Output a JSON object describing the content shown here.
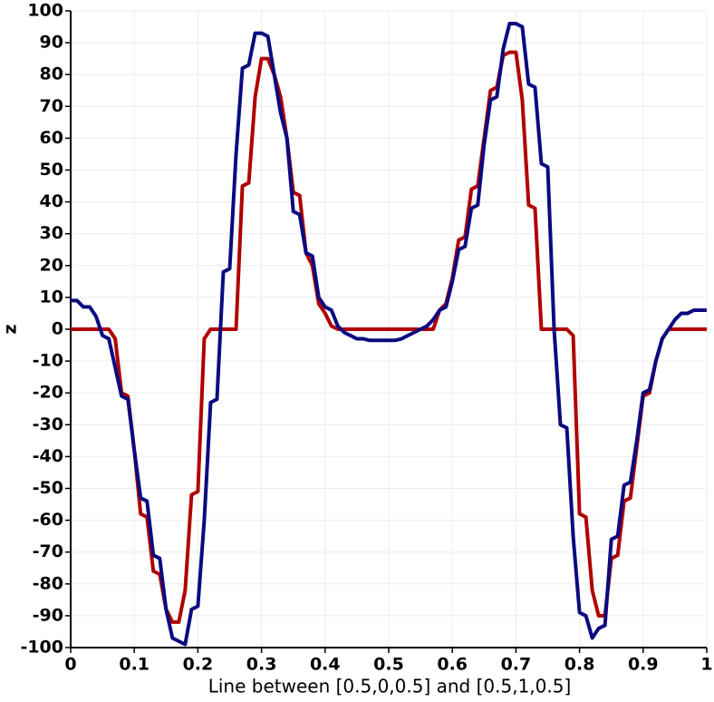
{
  "chart_data": {
    "type": "line",
    "x_label": "Line between [0.5,0,0.5]  and  [0.5,1,0.5]",
    "y_label": "z",
    "x": [
      0,
      0.01,
      0.02,
      0.03,
      0.04,
      0.05,
      0.06,
      0.07,
      0.08,
      0.09,
      0.1,
      0.11,
      0.12,
      0.13,
      0.14,
      0.15,
      0.16,
      0.17,
      0.18,
      0.19,
      0.2,
      0.21,
      0.22,
      0.23,
      0.24,
      0.25,
      0.26,
      0.27,
      0.28,
      0.29,
      0.3,
      0.31,
      0.32,
      0.33,
      0.34,
      0.35,
      0.36,
      0.37,
      0.38,
      0.39,
      0.4,
      0.41,
      0.42,
      0.43,
      0.44,
      0.45,
      0.46,
      0.47,
      0.48,
      0.49,
      0.5,
      0.51,
      0.52,
      0.53,
      0.54,
      0.55,
      0.56,
      0.57,
      0.58,
      0.59,
      0.6,
      0.61,
      0.62,
      0.63,
      0.64,
      0.65,
      0.66,
      0.67,
      0.68,
      0.69,
      0.7,
      0.71,
      0.72,
      0.73,
      0.74,
      0.75,
      0.76,
      0.77,
      0.78,
      0.79,
      0.8,
      0.81,
      0.82,
      0.83,
      0.84,
      0.85,
      0.86,
      0.87,
      0.88,
      0.89,
      0.9,
      0.91,
      0.92,
      0.93,
      0.94,
      0.95,
      0.96,
      0.97,
      0.98,
      0.99,
      1
    ],
    "series": [
      {
        "color": "#b00000",
        "values": [
          0,
          0,
          0,
          0,
          0,
          0,
          0,
          -3,
          -20,
          -21,
          -38,
          -58,
          -59,
          -76,
          -77,
          -88,
          -92,
          -92,
          -82,
          -52,
          -51,
          -3,
          0,
          0,
          0,
          0,
          0,
          45,
          46,
          73,
          85,
          85,
          80,
          73,
          60,
          43,
          42,
          24,
          20,
          8,
          5,
          1,
          0,
          0,
          0,
          0,
          0,
          0,
          0,
          0,
          0,
          0,
          0,
          0,
          0,
          0,
          0,
          0,
          6,
          8,
          16,
          28,
          29,
          44,
          45,
          60,
          75,
          76,
          86,
          87,
          87,
          72,
          39,
          38,
          0,
          0,
          0,
          0,
          0,
          -2,
          -58,
          -59,
          -82,
          -90,
          -90,
          -72,
          -71,
          -54,
          -53,
          -37,
          -21,
          -20,
          -10,
          -3,
          0,
          0,
          0,
          0,
          0,
          0,
          0
        ]
      },
      {
        "color": "#0a0a80",
        "values": [
          9,
          9,
          7,
          7,
          4,
          -2,
          -3,
          -12,
          -21,
          -22,
          -38,
          -53,
          -54,
          -71,
          -72,
          -88,
          -97,
          -98,
          -99,
          -88,
          -87,
          -60,
          -23,
          -22,
          18,
          19,
          55,
          82,
          83,
          93,
          93,
          92,
          80,
          68,
          60,
          37,
          36,
          24,
          23,
          10,
          7,
          6,
          1,
          -1,
          -2,
          -3,
          -3,
          -3.5,
          -3.5,
          -3.5,
          -3.5,
          -3.5,
          -3,
          -2,
          -1,
          0,
          1,
          3,
          6,
          7,
          15,
          25,
          26,
          38,
          39,
          58,
          72,
          73,
          88,
          96,
          96,
          95,
          77,
          76,
          52,
          51,
          0,
          -30,
          -31,
          -65,
          -89,
          -90,
          -97,
          -94,
          -93,
          -66,
          -65,
          -49,
          -48,
          -35,
          -20,
          -19,
          -10,
          -3,
          0,
          3,
          5,
          5,
          6,
          6,
          6
        ]
      }
    ],
    "xlim": [
      0,
      1
    ],
    "ylim": [
      -100,
      100
    ],
    "xticks": [
      0,
      0.1,
      0.2,
      0.3,
      0.4,
      0.5,
      0.6,
      0.7,
      0.8,
      0.9,
      1
    ],
    "yticks": [
      -100,
      -90,
      -80,
      -70,
      -60,
      -50,
      -40,
      -30,
      -20,
      -10,
      0,
      10,
      20,
      30,
      40,
      50,
      60,
      70,
      80,
      90,
      100
    ],
    "grid": true
  }
}
